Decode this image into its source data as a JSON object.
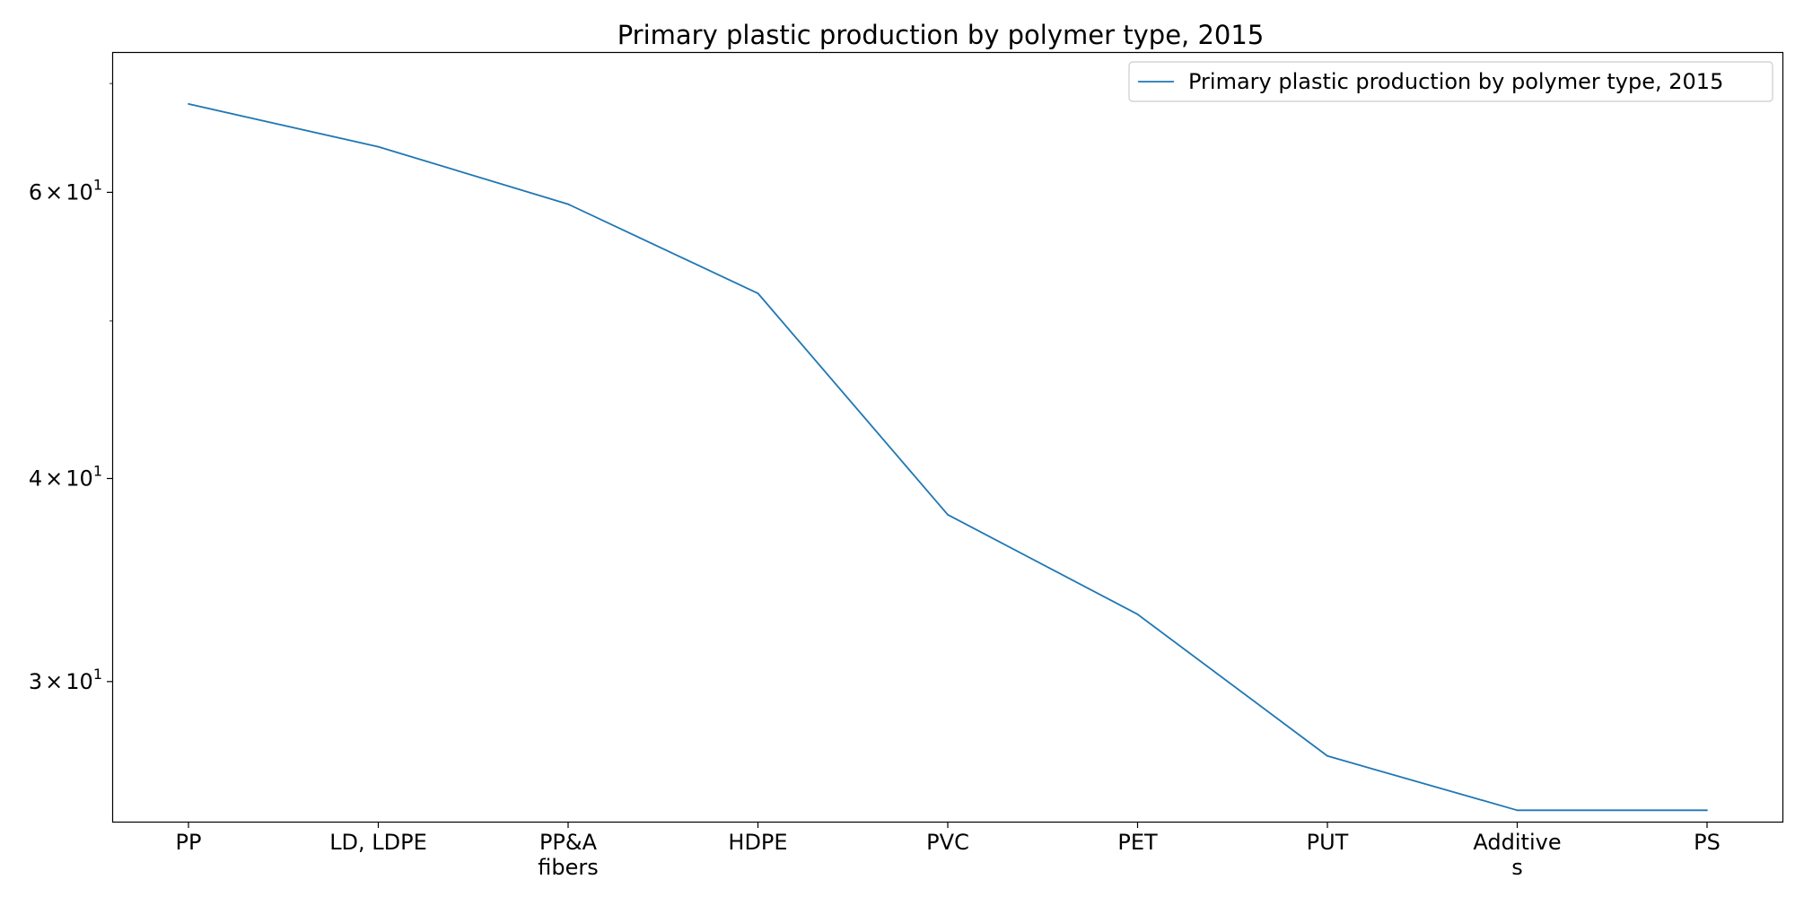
{
  "chart_data": {
    "type": "line",
    "title": "Primary plastic production by polymer type, 2015",
    "xlabel": "",
    "ylabel": "",
    "y_scale": "log",
    "ylim": [
      24.6,
      73.1
    ],
    "grid": false,
    "legend_position": "top-right",
    "categories": [
      [
        "PP"
      ],
      [
        "LD, LDPE"
      ],
      [
        "PP&A",
        "fibers"
      ],
      [
        "HDPE"
      ],
      [
        "PVC"
      ],
      [
        "PET"
      ],
      [
        "PUT"
      ],
      [
        "Additive",
        "s"
      ],
      [
        "PS"
      ]
    ],
    "y_ticks": [
      {
        "value": 30,
        "mantissa": "3"
      },
      {
        "value": 40,
        "mantissa": "4"
      },
      {
        "value": 60,
        "mantissa": "6"
      }
    ],
    "y_tick_base": "10",
    "y_tick_exponent": "1",
    "y_minor_ticks": [
      50,
      70
    ],
    "series": [
      {
        "name": "Primary plastic production by polymer type, 2015",
        "color": "#1f77b4",
        "values": [
          68,
          64,
          59,
          52,
          38,
          33,
          27,
          25,
          25
        ]
      }
    ]
  }
}
